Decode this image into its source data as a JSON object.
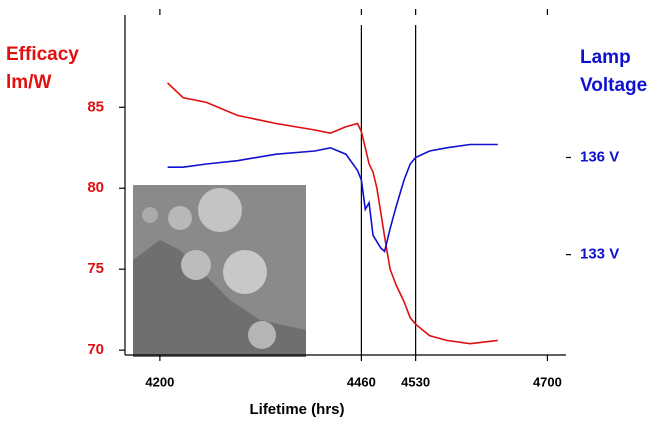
{
  "chart_data": {
    "type": "line",
    "x_label": "Lifetime (hrs)",
    "y_label": [
      "Efficacy",
      "lm/W"
    ],
    "y2_label": [
      "Lamp",
      "Voltage"
    ],
    "x": [
      4210,
      4230,
      4260,
      4300,
      4350,
      4400,
      4420,
      4440,
      4455,
      4460,
      4465,
      4470,
      4475,
      4480,
      4485,
      4490,
      4497,
      4505,
      4515,
      4523,
      4530,
      4548,
      4570,
      4600,
      4636
    ],
    "series": [
      {
        "name": "Efficacy",
        "color": "#e01010",
        "values": [
          86.5,
          85.6,
          85.3,
          84.5,
          84.0,
          83.6,
          83.4,
          83.8,
          84.0,
          83.5,
          82.5,
          81.5,
          81.0,
          80.0,
          78.5,
          77.0,
          75.0,
          74.0,
          73.0,
          72.0,
          71.6,
          70.9,
          70.6,
          70.4,
          70.6
        ]
      },
      {
        "name": "Lamp Voltage",
        "color": "#1010d0",
        "axis": "y2",
        "values": [
          135.7,
          135.7,
          135.8,
          135.9,
          136.1,
          136.2,
          136.3,
          136.1,
          135.6,
          135.3,
          134.4,
          134.6,
          133.6,
          133.4,
          133.2,
          133.1,
          133.8,
          134.5,
          135.3,
          135.8,
          136.0,
          136.2,
          136.3,
          136.4,
          136.4
        ]
      }
    ],
    "xlim": [
      4155,
      4724
    ],
    "xticks": [
      4200,
      4460,
      4530,
      4700
    ],
    "vlines": [
      4460,
      4530
    ],
    "ylim": [
      69.7,
      90.7
    ],
    "yticks": [
      70,
      75,
      80,
      85
    ],
    "y2lim": [
      129.9,
      140.4
    ],
    "y2ticks": [
      {
        "value": 133,
        "label": "133 V"
      },
      {
        "value": 136,
        "label": "136 V"
      }
    ]
  }
}
